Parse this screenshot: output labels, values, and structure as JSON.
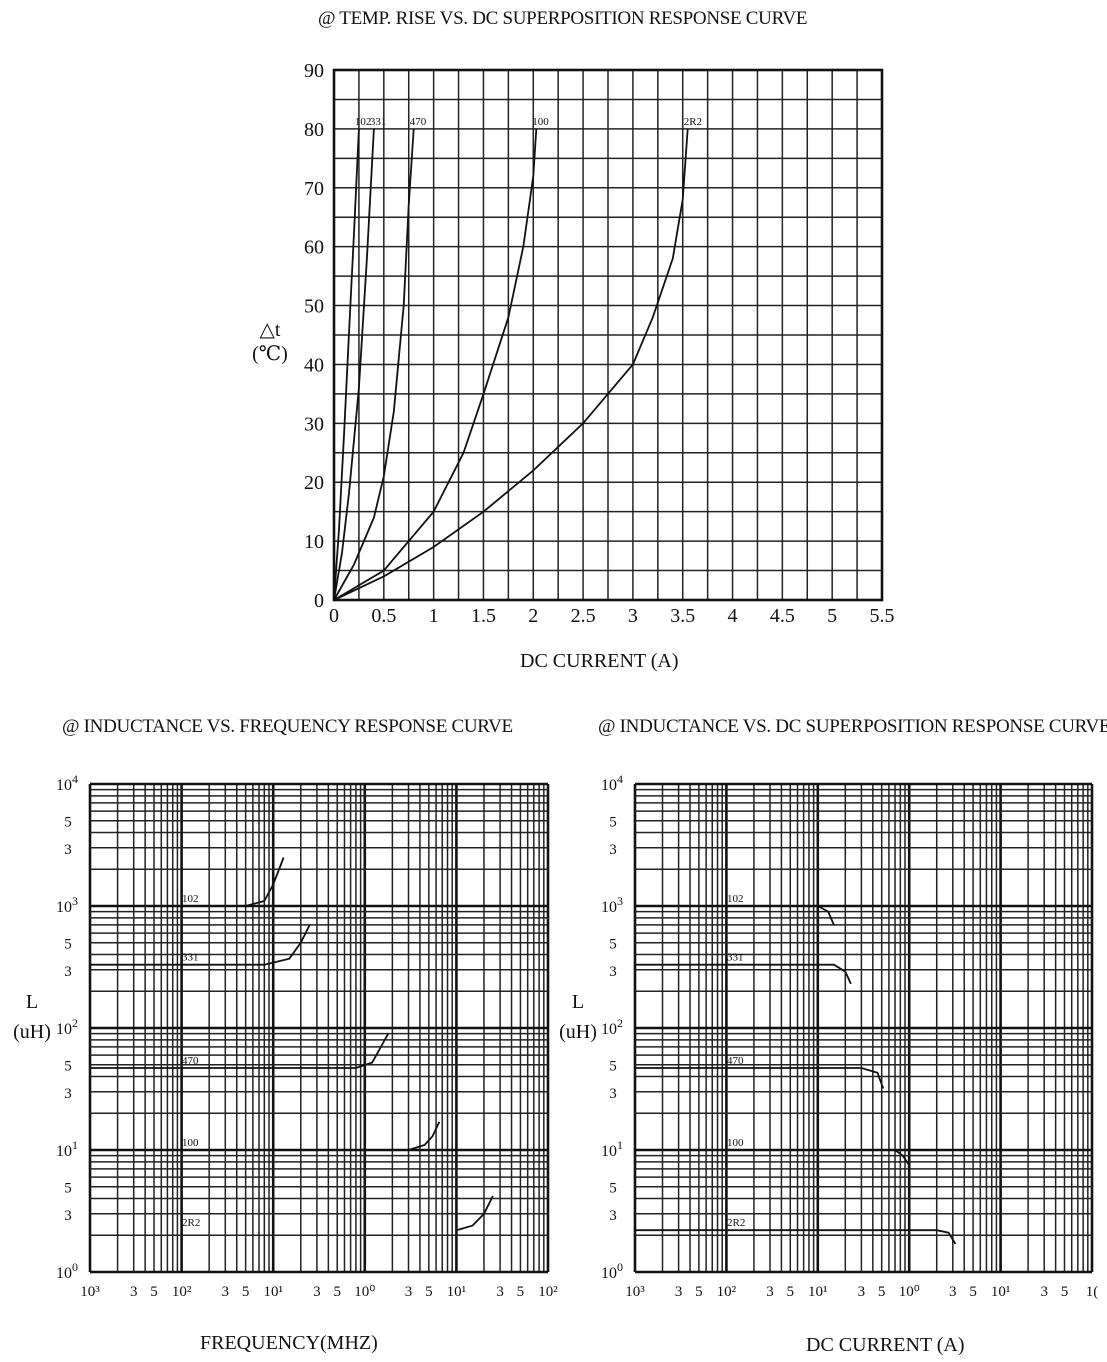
{
  "chart_data": [
    {
      "type": "line",
      "title": "@ TEMP. RISE VS. DC SUPERPOSITION RESPONSE CURVE",
      "xlabel": "DC CURRENT (A)",
      "ylabel_symbol": "△t",
      "ylabel_unit": "(℃)",
      "xlim": [
        0,
        5.5
      ],
      "ylim": [
        0,
        90
      ],
      "x_ticks": [
        "0",
        "0.5",
        "1",
        "1.5",
        "2",
        "2.5",
        "3",
        "3.5",
        "4",
        "4.5",
        "5",
        "5.5"
      ],
      "y_ticks": [
        "0",
        "10",
        "20",
        "30",
        "40",
        "50",
        "60",
        "70",
        "80",
        "90"
      ],
      "grid": true,
      "series": [
        {
          "name": "102",
          "x": [
            0,
            0.05,
            0.1,
            0.15,
            0.2,
            0.25
          ],
          "y": [
            0,
            12,
            28,
            45,
            62,
            80
          ]
        },
        {
          "name": "331",
          "x": [
            0,
            0.08,
            0.15,
            0.25,
            0.33,
            0.4
          ],
          "y": [
            0,
            8,
            18,
            36,
            58,
            80
          ]
        },
        {
          "name": "470",
          "x": [
            0,
            0.2,
            0.4,
            0.5,
            0.6,
            0.7,
            0.75,
            0.8
          ],
          "y": [
            0,
            6,
            14,
            21,
            32,
            50,
            67,
            80
          ]
        },
        {
          "name": "100",
          "x": [
            0,
            0.5,
            1.0,
            1.3,
            1.5,
            1.75,
            1.9,
            2.0,
            2.03
          ],
          "y": [
            0,
            5,
            15,
            25,
            35,
            48,
            60,
            72,
            80
          ]
        },
        {
          "name": "2R2",
          "x": [
            0,
            0.5,
            1.0,
            1.5,
            2.0,
            2.5,
            3.0,
            3.2,
            3.4,
            3.5,
            3.55
          ],
          "y": [
            0,
            4,
            9,
            15,
            22,
            30,
            40,
            48,
            58,
            68,
            80
          ]
        }
      ]
    },
    {
      "type": "line",
      "title": "@ INDUCTANCE VS.  FREQUENCY RESPONSE CURVE",
      "xlabel": "FREQUENCY(MHZ)",
      "ylabel_symbol": "L",
      "ylabel_unit": "(uH)",
      "x_scale": "log",
      "y_scale": "log",
      "xlim": [
        0.001,
        100
      ],
      "ylim": [
        1,
        10000
      ],
      "grid": true,
      "series": [
        {
          "name": "102",
          "x": [
            0.001,
            0.05,
            0.08,
            0.1,
            0.13
          ],
          "y": [
            1000,
            1000,
            1100,
            1500,
            2500
          ]
        },
        {
          "name": "331",
          "x": [
            0.001,
            0.08,
            0.15,
            0.2,
            0.25
          ],
          "y": [
            330,
            330,
            370,
            500,
            700
          ]
        },
        {
          "name": "470",
          "x": [
            0.001,
            0.8,
            1.2,
            1.5,
            1.8
          ],
          "y": [
            47,
            47,
            52,
            70,
            90
          ]
        },
        {
          "name": "100",
          "x": [
            3,
            4.5,
            5.5,
            6.5
          ],
          "y": [
            10,
            11,
            13,
            17
          ]
        },
        {
          "name": "2R2",
          "x": [
            10,
            15,
            20,
            25
          ],
          "y": [
            2.2,
            2.4,
            3,
            4.2
          ]
        }
      ]
    },
    {
      "type": "line",
      "title": "@ INDUCTANCE  VS. DC SUPERPOSITION  RESPONSE CURVE",
      "xlabel": "DC CURRENT (A)",
      "ylabel_symbol": "L",
      "ylabel_unit": "(uH)",
      "x_scale": "log",
      "y_scale": "log",
      "xlim": [
        0.001,
        100
      ],
      "ylim": [
        1,
        10000
      ],
      "grid": true,
      "series": [
        {
          "name": "102",
          "x": [
            0.001,
            0.1,
            0.13,
            0.15
          ],
          "y": [
            1000,
            1000,
            900,
            700
          ]
        },
        {
          "name": "331",
          "x": [
            0.001,
            0.15,
            0.2,
            0.23
          ],
          "y": [
            330,
            330,
            290,
            230
          ]
        },
        {
          "name": "470",
          "x": [
            0.001,
            0.3,
            0.45,
            0.52
          ],
          "y": [
            47,
            47,
            43,
            32
          ]
        },
        {
          "name": "100",
          "x": [
            0.7,
            0.85,
            1.0
          ],
          "y": [
            10,
            9,
            7.5
          ]
        },
        {
          "name": "2R2",
          "x": [
            0.001,
            2.0,
            2.7,
            3.2
          ],
          "y": [
            2.2,
            2.2,
            2.1,
            1.7
          ]
        }
      ]
    }
  ],
  "log_axis": {
    "y_tick_base": "10",
    "y_tick_exponents": [
      "0",
      "1",
      "2",
      "3",
      "4"
    ],
    "minor_labels": [
      "3",
      "5"
    ],
    "x_ticks_freq": [
      "10³",
      "3",
      "5",
      "10²",
      "3",
      "5",
      "10¹",
      "3",
      "5",
      "10⁰",
      "3",
      "5",
      "10¹",
      "3",
      "5",
      "10²"
    ],
    "x_ticks_dc": [
      "10³",
      "3",
      "5",
      "10²",
      "3",
      "5",
      "10¹",
      "3",
      "5",
      "10⁰",
      "3",
      "5",
      "10¹",
      "3",
      "5",
      "1("
    ]
  }
}
